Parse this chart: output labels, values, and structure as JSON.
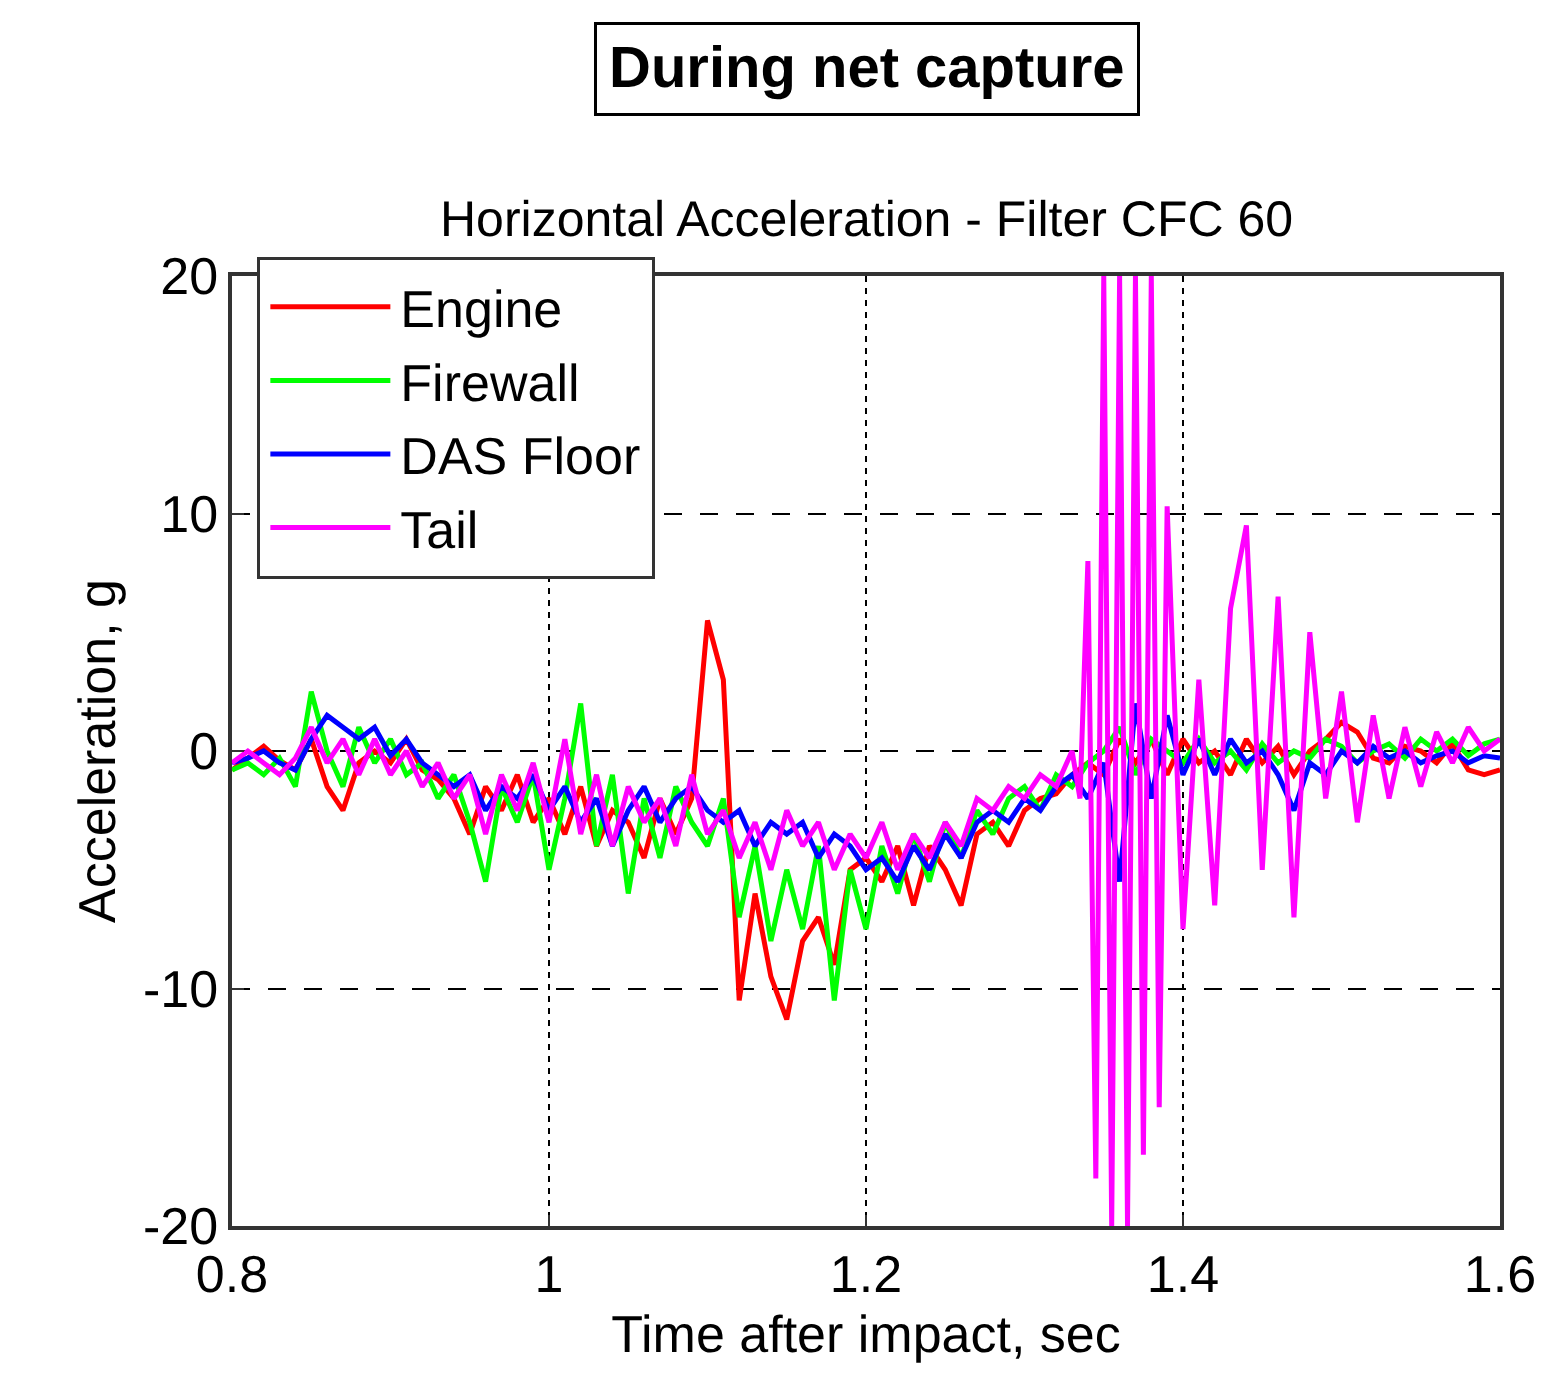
{
  "chart_data": {
    "type": "line",
    "title": "During net capture",
    "subtitle": "Horizontal Acceleration - Filter CFC 60",
    "xlabel": "Time after impact, sec",
    "ylabel": "Acceleration, g",
    "xlim": [
      0.8,
      1.6
    ],
    "xticks": [
      0.8,
      1,
      1.2,
      1.4,
      1.6
    ],
    "ylim": [
      -20,
      20
    ],
    "yticks": [
      -20,
      -10,
      0,
      10,
      20
    ],
    "grid": true,
    "line_style": "solid",
    "marker": "none",
    "legend": "top left",
    "x": [
      0.8,
      0.81,
      0.82,
      0.83,
      0.84,
      0.85,
      0.86,
      0.87,
      0.88,
      0.89,
      0.9,
      0.91,
      0.92,
      0.93,
      0.94,
      0.95,
      0.96,
      0.97,
      0.98,
      0.99,
      1.0,
      1.01,
      1.02,
      1.03,
      1.04,
      1.05,
      1.06,
      1.07,
      1.08,
      1.09,
      1.1,
      1.11,
      1.12,
      1.13,
      1.14,
      1.15,
      1.16,
      1.17,
      1.18,
      1.19,
      1.2,
      1.21,
      1.22,
      1.23,
      1.24,
      1.25,
      1.26,
      1.27,
      1.28,
      1.29,
      1.3,
      1.31,
      1.32,
      1.33,
      1.34,
      1.35,
      1.36,
      1.37,
      1.38,
      1.39,
      1.4,
      1.41,
      1.42,
      1.43,
      1.44,
      1.45,
      1.46,
      1.47,
      1.48,
      1.49,
      1.5,
      1.51,
      1.52,
      1.53,
      1.54,
      1.55,
      1.56,
      1.57,
      1.58,
      1.59,
      1.6
    ],
    "series": [
      {
        "name": "Engine",
        "color": "#ff0000",
        "values": [
          -0.8,
          -0.3,
          0.2,
          -0.4,
          -0.8,
          0.5,
          -1.5,
          -2.5,
          -0.5,
          0,
          -0.5,
          0.5,
          -0.8,
          -1.2,
          -2,
          -3.5,
          -1.5,
          -2.5,
          -1,
          -3,
          -2,
          -3.5,
          -1.5,
          -4,
          -2.5,
          -3,
          -4.5,
          -2,
          -3.5,
          -2,
          5.5,
          3,
          -10.5,
          -6,
          -9.5,
          -11.3,
          -8,
          -7,
          -9,
          -5,
          -4.5,
          -5.5,
          -4,
          -6.5,
          -4,
          -5,
          -6.5,
          -3.5,
          -3,
          -4,
          -2.5,
          -2,
          -1.8,
          -1,
          -0.5,
          -1,
          0.5,
          -0.5,
          0.5,
          -1,
          0.5,
          -0.5,
          0,
          -1,
          0.5,
          -0.5,
          0.2,
          -1,
          0,
          0.5,
          1.2,
          0.8,
          -0.3,
          -0.5,
          0.2,
          0,
          -0.5,
          0.3,
          -0.8,
          -1,
          -0.8
        ]
      },
      {
        "name": "Firewall",
        "color": "#00ff00",
        "values": [
          -0.8,
          -0.5,
          -1,
          -0.3,
          -1.5,
          2.5,
          0,
          -1.5,
          1,
          -0.5,
          0.5,
          -1,
          -0.5,
          -2,
          -1,
          -3,
          -5.5,
          -1.5,
          -3,
          -1,
          -5,
          -2,
          2,
          -4,
          -1,
          -6,
          -2,
          -4.5,
          -1.5,
          -3,
          -4,
          -2,
          -7,
          -4,
          -8,
          -5,
          -7.5,
          -4,
          -10.5,
          -5,
          -7.5,
          -4,
          -6,
          -3.5,
          -5.5,
          -3,
          -4.5,
          -2.5,
          -3.5,
          -2,
          -1.5,
          -2.5,
          -1,
          -1.5,
          -0.5,
          0,
          1,
          -1,
          0.5,
          0,
          -0.5,
          0.5,
          -0.5,
          0,
          -0.8,
          0.3,
          -0.5,
          0,
          -0.3,
          0.5,
          0.2,
          -0.5,
          0,
          0.3,
          -0.3,
          0.5,
          0,
          0.5,
          -0.2,
          0.3,
          0.5
        ]
      },
      {
        "name": "DAS Floor",
        "color": "#0000ff",
        "values": [
          -0.5,
          -0.3,
          0,
          -0.5,
          -0.8,
          0.5,
          1.5,
          1,
          0.5,
          1,
          -0.2,
          0.5,
          -0.5,
          -1,
          -1.5,
          -1,
          -2.5,
          -1.5,
          -2,
          -1,
          -2.5,
          -1.5,
          -3,
          -2,
          -4,
          -2.5,
          -1.5,
          -3,
          -2,
          -1.5,
          -2.5,
          -3,
          -2.5,
          -4,
          -3,
          -3.5,
          -3,
          -4.5,
          -3.5,
          -4,
          -5,
          -4.5,
          -5.5,
          -4,
          -5,
          -3.5,
          -4.5,
          -3,
          -2.5,
          -3,
          -2,
          -2.5,
          -1.5,
          -1,
          -2,
          -0.5,
          -5.5,
          2,
          -2,
          1.5,
          -1,
          0.5,
          -1,
          0.5,
          -0.5,
          0,
          -1,
          -2.5,
          -0.5,
          -1,
          0,
          -0.5,
          0.2,
          -0.3,
          0,
          -0.5,
          -0.2,
          0,
          -0.5,
          -0.2,
          -0.3
        ]
      },
      {
        "name": "Tail",
        "color": "#ff00ff",
        "x": [
          0.8,
          0.81,
          0.82,
          0.83,
          0.84,
          0.85,
          0.86,
          0.87,
          0.88,
          0.89,
          0.9,
          0.91,
          0.92,
          0.93,
          0.94,
          0.95,
          0.96,
          0.97,
          0.98,
          0.99,
          1.0,
          1.01,
          1.02,
          1.03,
          1.04,
          1.05,
          1.06,
          1.07,
          1.08,
          1.09,
          1.1,
          1.11,
          1.12,
          1.13,
          1.14,
          1.15,
          1.16,
          1.17,
          1.18,
          1.19,
          1.2,
          1.21,
          1.22,
          1.23,
          1.24,
          1.25,
          1.26,
          1.27,
          1.28,
          1.29,
          1.3,
          1.31,
          1.32,
          1.33,
          1.335,
          1.34,
          1.345,
          1.35,
          1.355,
          1.36,
          1.365,
          1.37,
          1.375,
          1.38,
          1.385,
          1.39,
          1.4,
          1.41,
          1.42,
          1.43,
          1.44,
          1.45,
          1.46,
          1.47,
          1.48,
          1.49,
          1.5,
          1.51,
          1.52,
          1.53,
          1.54,
          1.55,
          1.56,
          1.57,
          1.58,
          1.59,
          1.6
        ],
        "values": [
          -0.5,
          0,
          -0.5,
          -1,
          -0.3,
          1,
          -0.5,
          0.5,
          -1,
          0.5,
          -1,
          0,
          -1.5,
          -0.5,
          -2,
          -1,
          -3.5,
          -1,
          -2.5,
          -0.5,
          -3,
          0.5,
          -3.5,
          -1,
          -4,
          -1.5,
          -3,
          -2,
          -4,
          -1,
          -3.5,
          -2.5,
          -4.5,
          -3,
          -5,
          -2.5,
          -4,
          -3,
          -5,
          -3.5,
          -4.5,
          -3,
          -5,
          -3.5,
          -4.5,
          -3,
          -4,
          -2,
          -2.5,
          -1.5,
          -2,
          -1,
          -1.5,
          0,
          -2,
          8,
          -18,
          20,
          -20,
          20,
          -20,
          20,
          -17,
          20,
          -15,
          10.3,
          -7.5,
          3,
          -6.5,
          6,
          9.5,
          -5,
          6.5,
          -7,
          5,
          -2,
          2.5,
          -3,
          1.5,
          -2,
          1,
          -1.5,
          0.8,
          -0.5,
          1,
          0,
          0.5
        ]
      }
    ]
  }
}
